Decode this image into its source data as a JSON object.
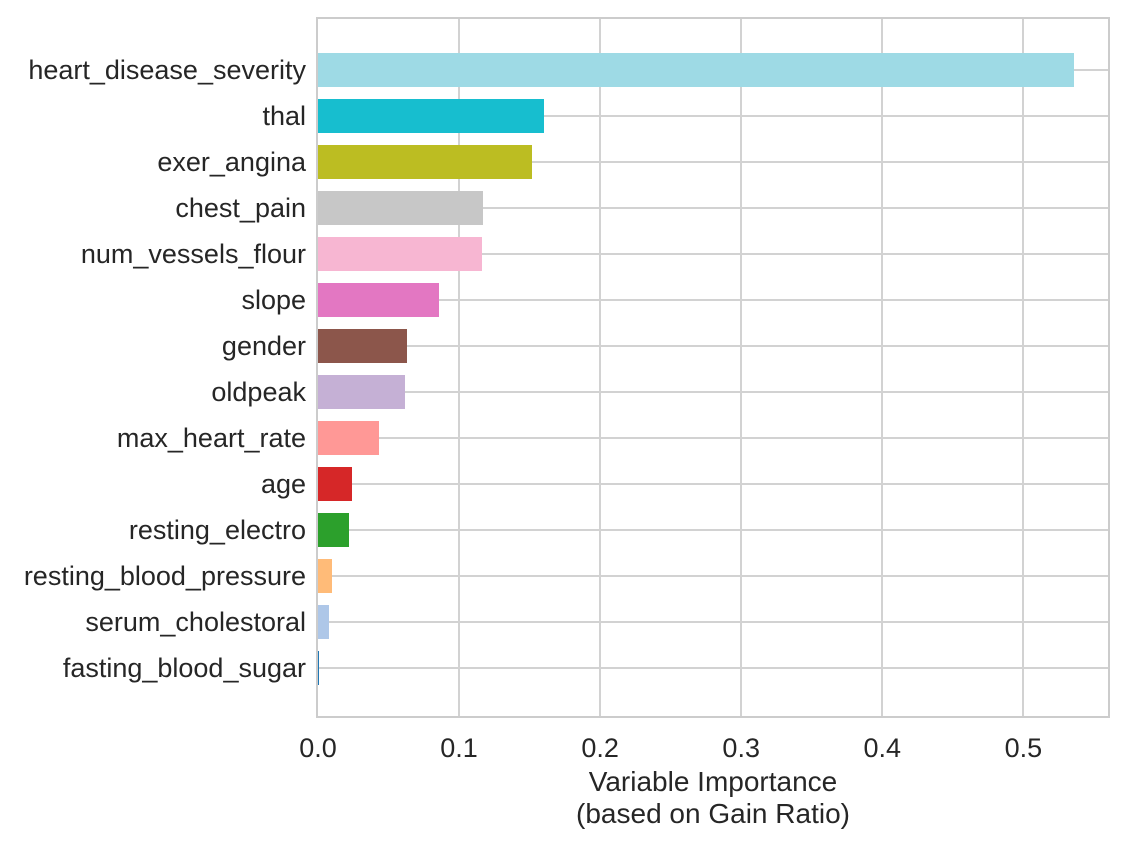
{
  "figure": {
    "background": "#ffffff",
    "text_color": "#262626",
    "grid_color": "#d2d2d2",
    "spine_color": "#cccccc"
  },
  "chart_data": {
    "type": "bar",
    "orientation": "horizontal",
    "title": "",
    "xlabel_line1": "Variable Importance",
    "xlabel_line2": "(based on Gain Ratio)",
    "ylabel": "",
    "legend": "none",
    "grid": "both",
    "xlim": [
      0,
      0.56
    ],
    "x_ticks": [
      0.0,
      0.1,
      0.2,
      0.3,
      0.4,
      0.5
    ],
    "x_tick_labels": [
      "0.0",
      "0.1",
      "0.2",
      "0.3",
      "0.4",
      "0.5"
    ],
    "categories": [
      "heart_disease_severity",
      "thal",
      "exer_angina",
      "chest_pain",
      "num_vessels_flour",
      "slope",
      "gender",
      "oldpeak",
      "max_heart_rate",
      "age",
      "resting_electro",
      "resting_blood_pressure",
      "serum_cholestoral",
      "fasting_blood_sugar"
    ],
    "values": [
      0.536,
      0.16,
      0.152,
      0.117,
      0.116,
      0.086,
      0.063,
      0.062,
      0.043,
      0.024,
      0.022,
      0.01,
      0.008,
      0.001
    ],
    "bar_colors": [
      "#9edae5",
      "#17becf",
      "#bcbd22",
      "#c7c7c7",
      "#f7b6d2",
      "#e377c2",
      "#8c564b",
      "#c5b0d5",
      "#ff9896",
      "#d62728",
      "#2ca02c",
      "#ffbb78",
      "#aec7e8",
      "#1f77b4"
    ]
  }
}
